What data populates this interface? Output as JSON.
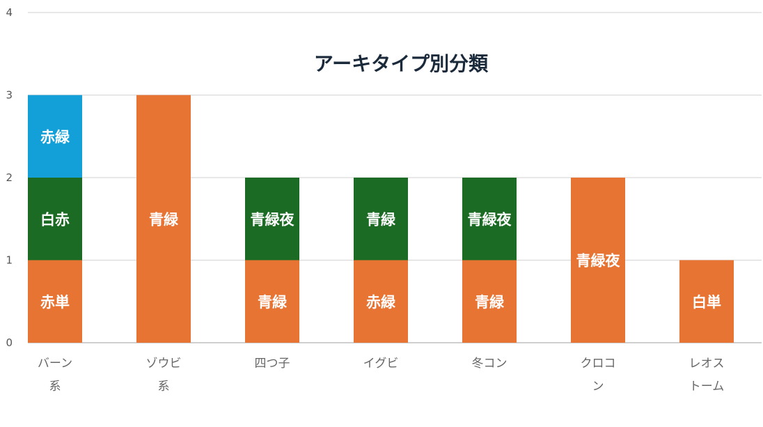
{
  "chart_data": {
    "type": "bar",
    "stacked": true,
    "title": "アーキタイプ別分類",
    "xlabel": "",
    "ylabel": "",
    "ylim": [
      0,
      4
    ],
    "yticks": [
      "0",
      "1",
      "2",
      "3",
      "4"
    ],
    "grid": true,
    "categories": [
      [
        "バーン",
        "系"
      ],
      [
        "ゾウビ",
        "系"
      ],
      [
        "四つ子"
      ],
      [
        "イグビ"
      ],
      [
        "冬コン"
      ],
      [
        "クロコ",
        "ン"
      ],
      [
        "レオス",
        "トーム"
      ]
    ],
    "colors": {
      "orange": "#E87434",
      "green": "#1B6B24",
      "blue": "#13A0D8"
    },
    "series": [
      {
        "color": "#E87434",
        "values": [
          1,
          3,
          1,
          1,
          1,
          2,
          1
        ],
        "labels": [
          "赤単",
          "青緑",
          "青緑",
          "赤緑",
          "青緑",
          "青緑夜",
          "白単"
        ]
      },
      {
        "color": "#1B6B24",
        "values": [
          1,
          0,
          1,
          1,
          1,
          0,
          0
        ],
        "labels": [
          "白赤",
          "",
          "青緑夜",
          "青緑",
          "青緑夜",
          "",
          ""
        ]
      },
      {
        "color": "#13A0D8",
        "values": [
          1,
          0,
          0,
          0,
          0,
          0,
          0
        ],
        "labels": [
          "赤緑",
          "",
          "",
          "",
          "",
          "",
          ""
        ]
      }
    ]
  }
}
